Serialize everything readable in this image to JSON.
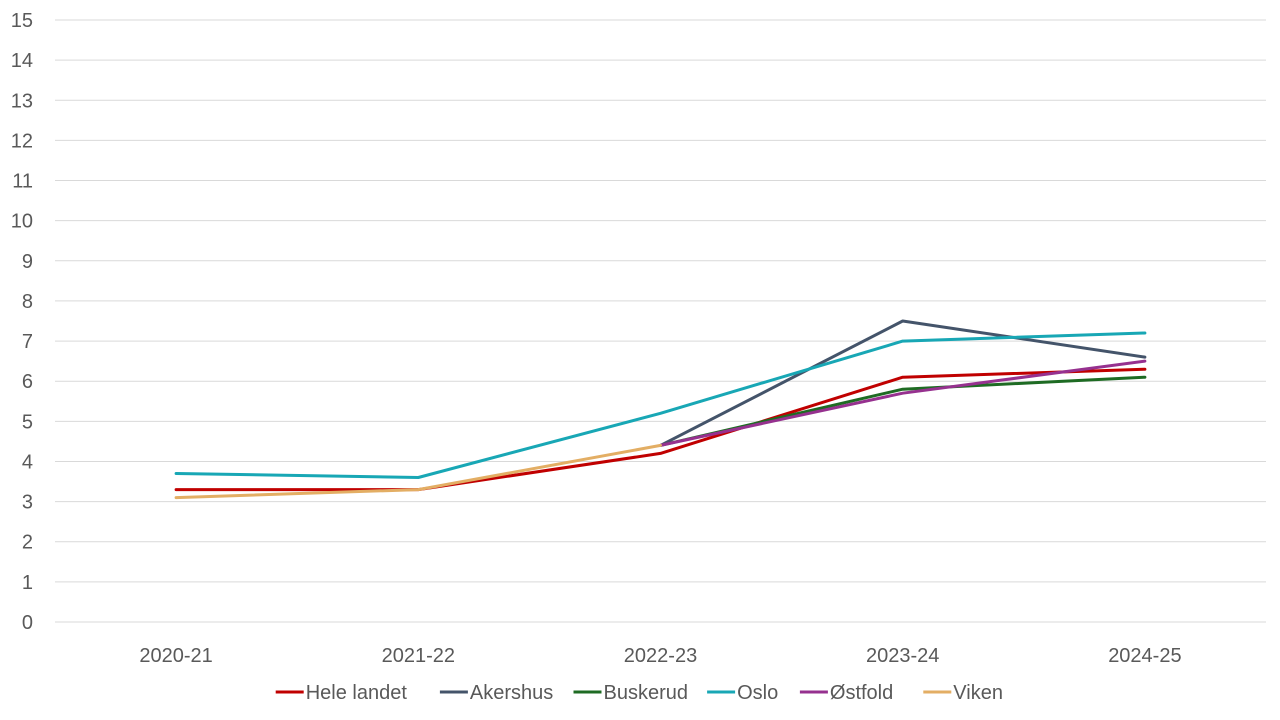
{
  "chart_data": {
    "type": "line",
    "title": "",
    "xlabel": "",
    "ylabel": "",
    "categories": [
      "2020-21",
      "2021-22",
      "2022-23",
      "2023-24",
      "2024-25"
    ],
    "ylim": [
      0,
      15
    ],
    "yticks": [
      "0",
      "1",
      "2",
      "3",
      "4",
      "5",
      "6",
      "7",
      "8",
      "9",
      "10",
      "11",
      "12",
      "13",
      "14",
      "15"
    ],
    "grid": true,
    "legend_position": "bottom",
    "series": [
      {
        "name": "Hele landet",
        "color": "#c00000",
        "values": [
          3.3,
          3.3,
          4.2,
          6.1,
          6.3
        ]
      },
      {
        "name": "Akershus",
        "color": "#44546a",
        "values": [
          null,
          null,
          4.4,
          7.5,
          6.6
        ]
      },
      {
        "name": "Buskerud",
        "color": "#1e6b23",
        "values": [
          null,
          null,
          4.4,
          5.8,
          6.1
        ]
      },
      {
        "name": "Oslo",
        "color": "#18a7b5",
        "values": [
          3.7,
          3.6,
          5.2,
          7.0,
          7.2
        ]
      },
      {
        "name": "Østfold",
        "color": "#96318f",
        "values": [
          null,
          null,
          4.4,
          5.7,
          6.5
        ]
      },
      {
        "name": "Viken",
        "color": "#e3ae64",
        "values": [
          3.1,
          3.3,
          4.4,
          null,
          null
        ]
      }
    ]
  }
}
